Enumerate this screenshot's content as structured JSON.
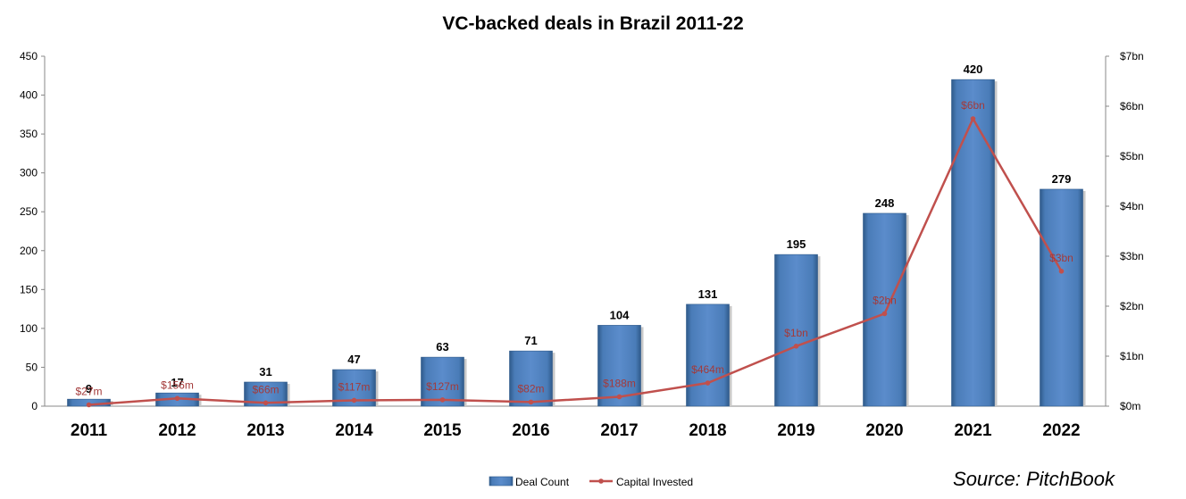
{
  "chart_data": {
    "type": "bar",
    "title": "VC-backed deals in Brazil 2011-22",
    "source": "Source: PitchBook",
    "categories": [
      "2011",
      "2012",
      "2013",
      "2014",
      "2015",
      "2016",
      "2017",
      "2018",
      "2019",
      "2020",
      "2021",
      "2022"
    ],
    "series": [
      {
        "name": "Deal Count",
        "type": "bar",
        "axis": "left",
        "color": "#4f81bd",
        "values": [
          9,
          17,
          31,
          47,
          63,
          71,
          104,
          131,
          195,
          248,
          420,
          279
        ],
        "labels": [
          "9",
          "17",
          "31",
          "47",
          "63",
          "71",
          "104",
          "131",
          "195",
          "248",
          "420",
          "279"
        ]
      },
      {
        "name": "Capital Invested",
        "type": "line",
        "axis": "right",
        "color": "#c0504d",
        "values": [
          0.027,
          0.156,
          0.066,
          0.117,
          0.127,
          0.082,
          0.188,
          0.464,
          1.2,
          1.85,
          5.75,
          2.7
        ],
        "labels": [
          "$27m",
          "$156m",
          "$66m",
          "$117m",
          "$127m",
          "$82m",
          "$188m",
          "$464m",
          "$1bn",
          "$2bn",
          "$6bn",
          "$3bn"
        ]
      }
    ],
    "left_axis": {
      "min": 0,
      "max": 450,
      "step": 50,
      "ticks": [
        "0",
        "50",
        "100",
        "150",
        "200",
        "250",
        "300",
        "350",
        "400",
        "450"
      ]
    },
    "right_axis": {
      "min": 0,
      "max": 7,
      "step": 1,
      "unit": "bn",
      "ticks": [
        "$0m",
        "$1bn",
        "$2bn",
        "$3bn",
        "$4bn",
        "$5bn",
        "$6bn",
        "$7bn"
      ]
    },
    "grid": false,
    "legend": "bottom"
  }
}
